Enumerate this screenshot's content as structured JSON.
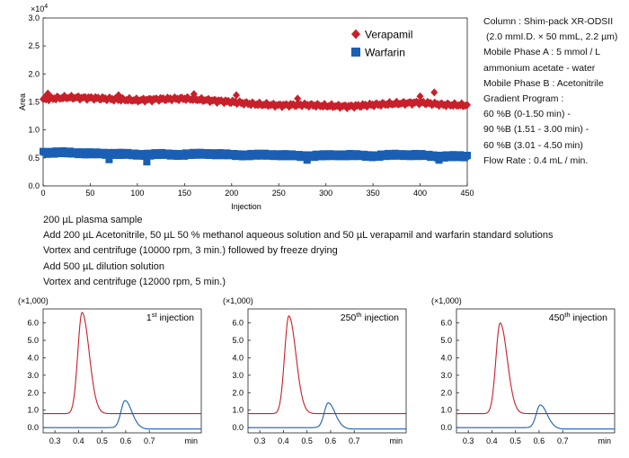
{
  "main_chart_data": {
    "type": "scatter",
    "xlabel": "Injection",
    "ylabel": "Area",
    "multiplier": "×10",
    "multiplier_exp": "4",
    "xlim": [
      0,
      450
    ],
    "ylim": [
      0,
      3.0
    ],
    "xticks": [
      "0",
      "50",
      "100",
      "150",
      "200",
      "250",
      "300",
      "350",
      "400",
      "450"
    ],
    "yticks": [
      "0.0",
      "0.5",
      "1.0",
      "1.5",
      "2.0",
      "2.5",
      "3.0"
    ],
    "legend_position": "top-right",
    "series": [
      {
        "name": "Verapamil",
        "color": "#c8202a",
        "marker": "diamond",
        "x": [
          0,
          25,
          50,
          75,
          100,
          125,
          150,
          175,
          200,
          225,
          250,
          275,
          300,
          325,
          350,
          375,
          400,
          425,
          450
        ],
        "y": [
          1.55,
          1.58,
          1.57,
          1.55,
          1.53,
          1.55,
          1.56,
          1.53,
          1.5,
          1.46,
          1.44,
          1.45,
          1.43,
          1.42,
          1.45,
          1.47,
          1.49,
          1.45,
          1.44
        ]
      },
      {
        "name": "Warfarin",
        "color": "#1a5fb4",
        "marker": "square",
        "x": [
          0,
          25,
          50,
          75,
          100,
          125,
          150,
          175,
          200,
          225,
          250,
          275,
          300,
          325,
          350,
          375,
          400,
          425,
          450
        ],
        "y": [
          0.6,
          0.59,
          0.58,
          0.58,
          0.55,
          0.57,
          0.56,
          0.57,
          0.56,
          0.55,
          0.55,
          0.54,
          0.54,
          0.55,
          0.54,
          0.55,
          0.55,
          0.53,
          0.52
        ]
      }
    ],
    "outliers": [
      {
        "series": 0,
        "x": [
          5,
          80,
          160,
          205,
          270,
          400,
          415
        ],
        "y": [
          1.65,
          1.62,
          1.64,
          1.62,
          1.56,
          1.6,
          1.67
        ]
      },
      {
        "series": 1,
        "x": [
          70,
          110,
          280,
          420
        ],
        "y": [
          0.47,
          0.43,
          0.46,
          0.46
        ]
      }
    ]
  },
  "conditions": [
    "Column : Shim-pack XR-ODSII",
    "(2.0 mmI.D. × 50 mmL, 2.2 µm)",
    "Mobile Phase A : 5 mmol / L",
    "ammonium acetate - water",
    "Mobile Phase B : Acetonitrile",
    "Gradient Program :",
    "60 %B (0-1.50 min) -",
    "90 %B (1.51 - 3.00 min) -",
    "60 %B (3.01 - 4.50 min)",
    "Flow Rate : 0.4 mL / min."
  ],
  "steps": [
    "200 µL plasma sample",
    "Add 200 µL Acetonitrile, 50 µL 50 % methanol aqueous solution and 50 µL verapamil and warfarin standard solutions",
    "Vortex and centrifuge (10000 rpm, 3 min.) followed by freeze drying",
    "Add 500 µL dilution solution",
    "Vortex and centrifuge (12000 rpm, 5 min.)"
  ],
  "chromatograms": [
    {
      "label_num": "1",
      "label_sup": "st",
      "label_rest": " injection",
      "multiplier": "(×1,000)",
      "xunit": "min",
      "xlim": [
        0.25,
        0.92
      ],
      "ylim": [
        -0.3,
        6.8
      ],
      "xticks": [
        "0.3",
        "0.4",
        "0.5",
        "0.6",
        "0.7"
      ],
      "yticks": [
        "0.0",
        "1.0",
        "2.0",
        "3.0",
        "4.0",
        "5.0",
        "6.0"
      ],
      "peaks": [
        {
          "color": "#c8202a",
          "baseline": 0.8,
          "rt": 0.415,
          "height": 5.8,
          "w_front": 0.018,
          "w_tail": 0.03
        },
        {
          "color": "#1a5fb4",
          "baseline": 0.0,
          "rt": 0.597,
          "height": 1.55,
          "w_front": 0.017,
          "w_tail": 0.028
        }
      ]
    },
    {
      "label_num": "250",
      "label_sup": "th",
      "label_rest": " injection",
      "multiplier": "(×1,000)",
      "xunit": "min",
      "xlim": [
        0.25,
        0.92
      ],
      "ylim": [
        -0.3,
        6.8
      ],
      "xticks": [
        "0.3",
        "0.4",
        "0.5",
        "0.6",
        "0.7"
      ],
      "yticks": [
        "0.0",
        "1.0",
        "2.0",
        "3.0",
        "4.0",
        "5.0",
        "6.0"
      ],
      "peaks": [
        {
          "color": "#c8202a",
          "baseline": 0.8,
          "rt": 0.423,
          "height": 5.6,
          "w_front": 0.018,
          "w_tail": 0.03
        },
        {
          "color": "#1a5fb4",
          "baseline": 0.0,
          "rt": 0.59,
          "height": 1.42,
          "w_front": 0.017,
          "w_tail": 0.028
        }
      ]
    },
    {
      "label_num": "450",
      "label_sup": "th",
      "label_rest": " injection",
      "multiplier": "(×1,000)",
      "xunit": "min",
      "xlim": [
        0.25,
        0.92
      ],
      "ylim": [
        -0.3,
        6.8
      ],
      "xticks": [
        "0.3",
        "0.4",
        "0.5",
        "0.6",
        "0.7"
      ],
      "yticks": [
        "0.0",
        "1.0",
        "2.0",
        "3.0",
        "4.0",
        "5.0",
        "6.0"
      ],
      "peaks": [
        {
          "color": "#c8202a",
          "baseline": 0.8,
          "rt": 0.435,
          "height": 5.2,
          "w_front": 0.018,
          "w_tail": 0.03
        },
        {
          "color": "#1a5fb4",
          "baseline": 0.0,
          "rt": 0.605,
          "height": 1.3,
          "w_front": 0.017,
          "w_tail": 0.028
        }
      ]
    }
  ]
}
